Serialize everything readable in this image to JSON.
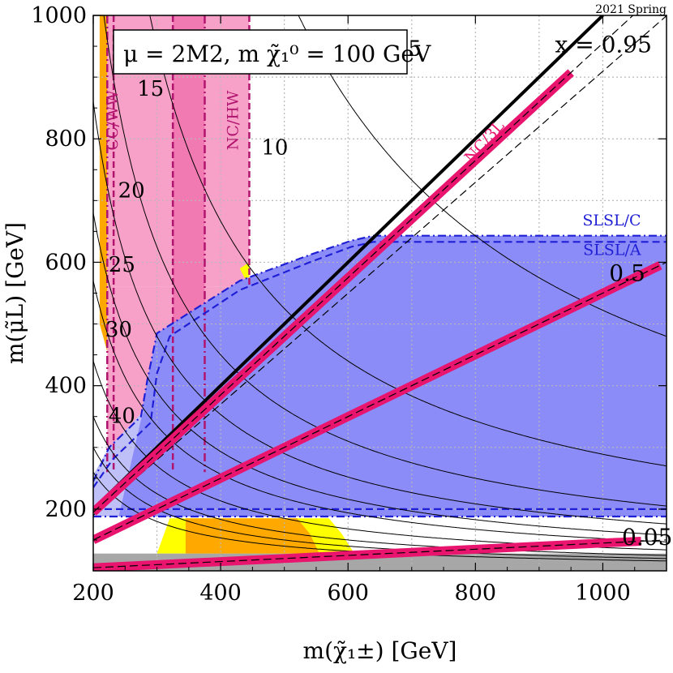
{
  "corner_label": "2021 Spring",
  "chart_data": {
    "type": "line",
    "title": "",
    "xlabel": "m(χ̃₁±) [GeV]",
    "ylabel": "m(μ̃L) [GeV]",
    "xlim": [
      200,
      1100
    ],
    "ylim": [
      100,
      1000
    ],
    "x_ticks": [
      200,
      400,
      600,
      800,
      1000
    ],
    "y_ticks": [
      200,
      400,
      600,
      800,
      1000
    ],
    "grid": true,
    "scenario_label": "μ = 2M2,  m χ̃₁⁰ = 100 GeV",
    "colors": {
      "slsl_fill": "#8c8cf8",
      "slsl_light": "#c0c0f8",
      "slsl_line": "#1f1fd6",
      "nc_band": "#e8146e",
      "pink_light": "#f8a1c8",
      "pink_dark": "#f17ab3",
      "pink_line": "#b0146e",
      "yellow": "#ffff00",
      "orange": "#ffa800",
      "gray": "#a7a7a7"
    },
    "x_contours": [
      {
        "label": "0.95",
        "label_x": 925,
        "label_y": 940,
        "slope": 0.95,
        "x_range": [
          200,
          950
        ]
      },
      {
        "label": "0.5",
        "label_x": 1010,
        "label_y": 570,
        "slope": 0.5,
        "x_range": [
          200,
          1090
        ]
      },
      {
        "label": "0.05",
        "label_x": 1030,
        "label_y": 142,
        "slope": 0.05,
        "x_range": [
          200,
          1060
        ]
      }
    ],
    "x_label_prefix": "x = ",
    "lifetime_contours": [
      {
        "label": "5",
        "label_x": 705,
        "label_y": 935
      },
      {
        "label": "10",
        "label_x": 485,
        "label_y": 775
      },
      {
        "label": "15",
        "label_x": 290,
        "label_y": 870
      },
      {
        "label": "20",
        "label_x": 260,
        "label_y": 705
      },
      {
        "label": "25",
        "label_x": 245,
        "label_y": 585
      },
      {
        "label": "30",
        "label_x": 240,
        "label_y": 480
      },
      {
        "label": "40",
        "label_x": 245,
        "label_y": 340
      }
    ],
    "region_labels": [
      {
        "label": "CC/WW",
        "x": 238,
        "y": 830
      },
      {
        "label": "NC/HW",
        "x": 427,
        "y": 830
      },
      {
        "label": "NC/3L",
        "x": 820,
        "y": 790
      },
      {
        "label": "SLSL/C",
        "x": 1010,
        "y": 660
      },
      {
        "label": "SLSL/A",
        "x": 1010,
        "y": 612
      }
    ],
    "slsl": {
      "C_upper": 643,
      "A_upper": 633,
      "C_lower": 188,
      "A_lower": 200
    },
    "excluded_gray": {
      "y_max": 128
    }
  }
}
